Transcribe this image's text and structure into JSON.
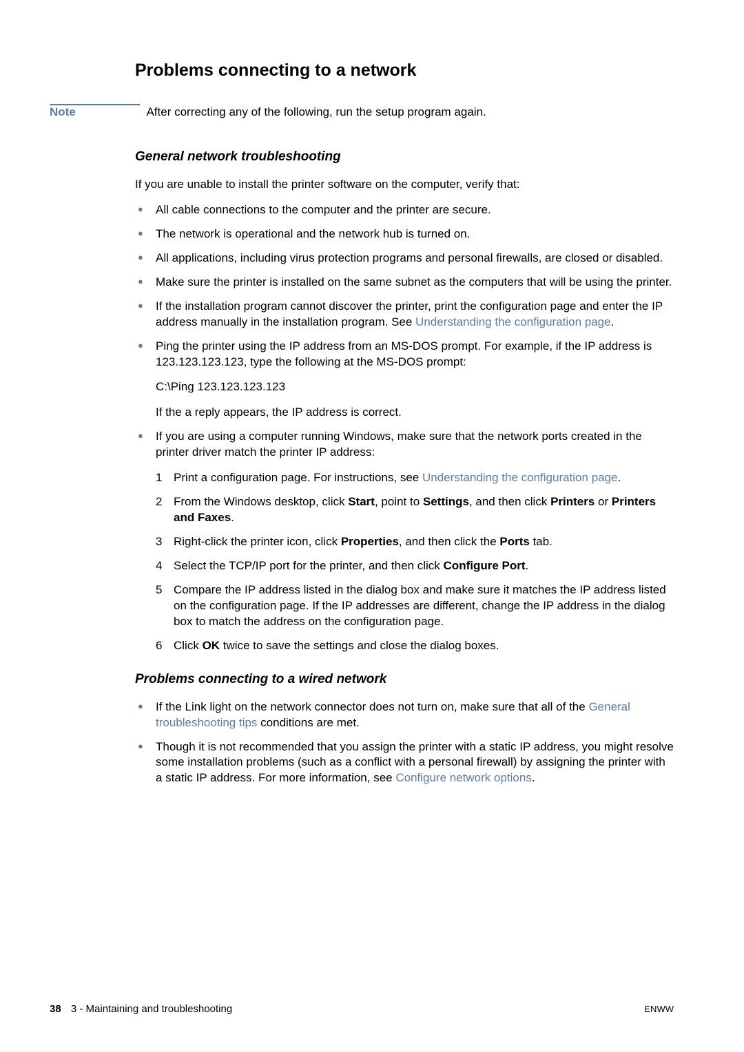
{
  "colors": {
    "accent": "#5a7ca8",
    "text": "#000000",
    "background": "#ffffff"
  },
  "typography": {
    "body_fontsize": 17,
    "title_fontsize": 25,
    "heading_fontsize": 19,
    "footer_fontsize": 15
  },
  "title": "Problems connecting to a network",
  "note": {
    "label": "Note",
    "text": "After correcting any of the following, run the setup program again."
  },
  "section1": {
    "heading": "General network troubleshooting",
    "intro": "If you are unable to install the printer software on the computer, verify that:",
    "bullets": {
      "b1": "All cable connections to the computer and the printer are secure.",
      "b2": "The network is operational and the network hub is turned on.",
      "b3": "All applications, including virus protection programs and personal firewalls, are closed or disabled.",
      "b4": "Make sure the printer is installed on the same subnet as the computers that will be using the printer.",
      "b5": {
        "pre": "If the installation program cannot discover the printer, print the configuration page and enter the IP address manually in the installation program. See ",
        "link": "Understanding the configuration page",
        "post": "."
      },
      "b6": {
        "line1": "Ping the printer using the IP address from an MS-DOS prompt. For example, if the IP address is 123.123.123.123, type the following at the MS-DOS prompt:",
        "line2": "C:\\Ping 123.123.123.123",
        "line3": "If the a reply appears, the IP address is correct."
      },
      "b7": {
        "intro": "If you are using a computer running Windows, make sure that the network ports created in the printer driver match the printer IP address:",
        "steps": {
          "s1": {
            "pre": "Print a configuration page. For instructions, see ",
            "link": "Understanding the configuration page",
            "post": "."
          },
          "s2": {
            "pre": "From the Windows desktop, click ",
            "b1": "Start",
            "mid1": ", point to ",
            "b2": "Settings",
            "mid2": ", and then click ",
            "b3": "Printers",
            "mid3": " or ",
            "b4": "Printers and Faxes",
            "post": "."
          },
          "s3": {
            "pre": "Right-click the printer icon, click ",
            "b1": "Properties",
            "mid1": ", and then click the ",
            "b2": "Ports",
            "post": " tab."
          },
          "s4": {
            "pre": "Select the TCP/IP port for the printer, and then click ",
            "b1": "Configure Port",
            "post": "."
          },
          "s5": "Compare the IP address listed in the dialog box and make sure it matches the IP address listed on the configuration page. If the IP addresses are different, change the IP address in the dialog box to match the address on the configuration page.",
          "s6": {
            "pre": "Click ",
            "b1": "OK",
            "post": " twice to save the settings and close the dialog boxes."
          }
        }
      }
    }
  },
  "section2": {
    "heading": "Problems connecting to a wired network",
    "bullets": {
      "b1": {
        "pre": "If the Link light on the network connector does not turn on, make sure that all of the ",
        "link": "General troubleshooting tips",
        "post": " conditions are met."
      },
      "b2": {
        "pre": "Though it is not recommended that you assign the printer with a static IP address, you might resolve some installation problems (such as a conflict with a personal firewall) by assigning the printer with a static IP address. For more information, see ",
        "link": "Configure network options",
        "post": "."
      }
    }
  },
  "footer": {
    "page_number": "38",
    "chapter": "3 - Maintaining and troubleshooting",
    "right": "ENWW"
  }
}
